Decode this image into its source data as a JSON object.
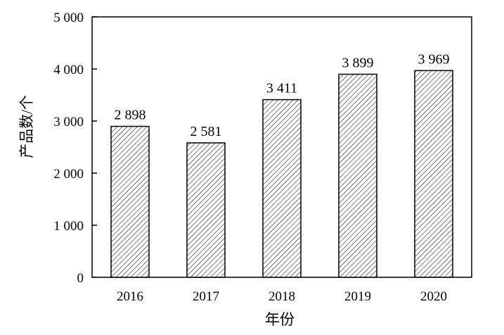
{
  "chart_data": {
    "type": "bar",
    "categories": [
      "2016",
      "2017",
      "2018",
      "2019",
      "2020"
    ],
    "values": [
      2898,
      2581,
      3411,
      3899,
      3969
    ],
    "value_labels": [
      "2 898",
      "2 581",
      "3 411",
      "3 899",
      "3 969"
    ],
    "xlabel": "年份",
    "ylabel": "产品数/个",
    "ylim": [
      0,
      5000
    ],
    "yticks": [
      0,
      1000,
      2000,
      3000,
      4000,
      5000
    ],
    "ytick_labels": [
      "0",
      "1 000",
      "2 000",
      "3 000",
      "4 000",
      "5 000"
    ],
    "grid": false,
    "bar_fill": "diagonal-hatch",
    "colors": {
      "bar_stroke": "#000000",
      "hatch": "#000000",
      "background": "#ffffff"
    }
  }
}
